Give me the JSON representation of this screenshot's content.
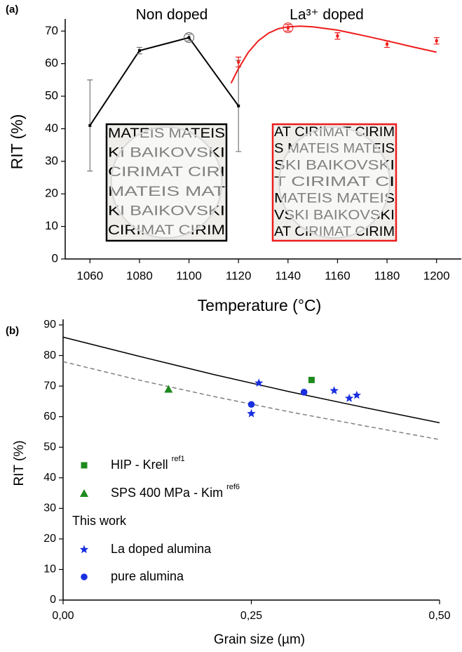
{
  "chart_data": [
    {
      "type": "line",
      "panel": "(a)",
      "x_label": "Temperature (°C)",
      "y_label": "RIT (%)",
      "xlim": [
        1050,
        1210
      ],
      "ylim": [
        0,
        72
      ],
      "xticks": [
        1060,
        1080,
        1100,
        1120,
        1140,
        1160,
        1180,
        1200
      ],
      "yticks": [
        0,
        10,
        20,
        30,
        40,
        50,
        60,
        70
      ],
      "series": [
        {
          "name": "Non doped",
          "color": "#000000",
          "line": true,
          "x": [
            1060,
            1080,
            1100,
            1120
          ],
          "values": [
            41,
            64,
            68,
            47
          ],
          "errors": [
            14,
            1,
            1,
            14
          ],
          "highlight": [
            2
          ]
        },
        {
          "name": "La³⁺ doped",
          "color": "#ee1c1c",
          "line": false,
          "x": [
            1120,
            1140,
            1160,
            1180,
            1200
          ],
          "values": [
            60.5,
            71,
            68.5,
            66,
            67
          ],
          "errors": [
            1.5,
            1,
            1,
            1,
            1
          ],
          "highlight": [
            1
          ],
          "fit": {
            "x": [
              1117,
              1120,
              1124,
              1128,
              1132,
              1136,
              1140,
              1145,
              1150,
              1160,
              1170,
              1180,
              1190,
              1200
            ],
            "values": [
              54,
              58.5,
              63.5,
              67,
              69.3,
              70.7,
              71.3,
              71.5,
              71.3,
              70.3,
              68.7,
              67,
              65.2,
              63.5
            ]
          }
        }
      ],
      "insets": [
        {
          "border": "#000000",
          "lines": [
            {
              "text": "MATEIS MATEIS",
              "color": "#e0393e"
            },
            {
              "text": "KI BAIKOVSKI",
              "color": "#2f4fa8"
            },
            {
              "text": "CIRIMAT CIRI",
              "color": "#111111"
            },
            {
              "text": "MATEIS MAT",
              "color": "#e0393e"
            },
            {
              "text": "KI BAIKOVSKI",
              "color": "#2f4fa8"
            },
            {
              "text": "CIRIMAT CIRIM",
              "color": "#111111"
            }
          ]
        },
        {
          "border": "#ee1c1c",
          "lines": [
            {
              "text": "AT CIRIMAT CIRIM",
              "color": "#111111"
            },
            {
              "text": "S MATEIS MATEIS",
              "color": "#e0393e"
            },
            {
              "text": "SKI BAIKOVSKI",
              "color": "#2f4fa8"
            },
            {
              "text": "T CIRIMAT CI",
              "color": "#111111"
            },
            {
              "text": "MATEIS MATEIS",
              "color": "#e0393e"
            },
            {
              "text": "VSKI BAIKOVSKI",
              "color": "#2f4fa8"
            },
            {
              "text": "AT CIRIMAT CIRIM",
              "color": "#111111"
            }
          ]
        }
      ]
    },
    {
      "type": "scatter",
      "panel": "(b)",
      "x_label": "Grain size (µm)",
      "y_label": "RIT (%)",
      "xlim": [
        0,
        0.5
      ],
      "ylim": [
        0,
        90
      ],
      "xticks": [
        {
          "value": 0,
          "label": "0,00"
        },
        {
          "value": 0.25,
          "label": "0,25"
        },
        {
          "value": 0.5,
          "label": "0,50"
        }
      ],
      "yticks": [
        0,
        10,
        20,
        30,
        40,
        50,
        60,
        70,
        80,
        90
      ],
      "lines": [
        {
          "style": "solid",
          "color": "#000000",
          "x": [
            0,
            0.1,
            0.2,
            0.3,
            0.4,
            0.5
          ],
          "values": [
            86,
            79.8,
            73.8,
            68.2,
            63,
            58
          ]
        },
        {
          "style": "dashed",
          "color": "#808080",
          "x": [
            0,
            0.1,
            0.2,
            0.3,
            0.4,
            0.5
          ],
          "values": [
            78,
            72,
            66.6,
            61.6,
            57,
            52.5
          ]
        }
      ],
      "legend": "lower left",
      "legend_heading": "This work",
      "legend_heading_color": "#1c1c8c",
      "series": [
        {
          "name": "HIP - Krell",
          "ref": "ref1",
          "marker": "square",
          "color": "#1e8a1e",
          "this_work": false,
          "x": [
            0.33
          ],
          "values": [
            72
          ]
        },
        {
          "name": "SPS 400 MPa - Kim",
          "ref": "ref6",
          "marker": "triangle",
          "color": "#1e8a1e",
          "this_work": false,
          "x": [
            0.14
          ],
          "values": [
            69
          ]
        },
        {
          "name": "La doped alumina",
          "marker": "star",
          "color": "#1a2fe0",
          "this_work": true,
          "x": [
            0.26,
            0.25,
            0.36,
            0.38,
            0.39
          ],
          "values": [
            71,
            61,
            68.5,
            66,
            67
          ]
        },
        {
          "name": "pure alumina",
          "marker": "circle",
          "color": "#1a2fe0",
          "this_work": true,
          "x": [
            0.25,
            0.32
          ],
          "values": [
            64,
            68
          ]
        }
      ]
    }
  ]
}
